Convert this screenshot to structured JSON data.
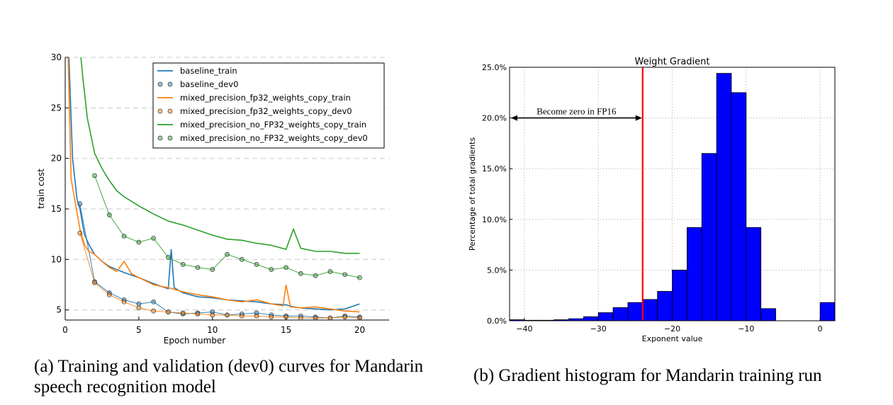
{
  "chart_data": [
    {
      "type": "line",
      "xlabel": "Epoch number",
      "ylabel": "train cost",
      "xlim": [
        0,
        22
      ],
      "ylim": [
        4,
        30
      ],
      "xticks": [
        0,
        5,
        10,
        15,
        20
      ],
      "yticks": [
        5,
        10,
        15,
        20,
        25,
        30
      ],
      "grid": "horizontal dashed",
      "legend_position": "top-right",
      "caption": "(a) Training and validation (dev0) curves for Mandarin speech recognition model",
      "series": [
        {
          "name": "baseline_train",
          "kind": "line",
          "color": "#1f77b4",
          "x": [
            0.2,
            0.5,
            0.8,
            1.0,
            1.3,
            1.6,
            2.0,
            2.5,
            3.0,
            3.5,
            4.0,
            5.0,
            6.0,
            7.0,
            7.2,
            7.4,
            8.0,
            9.0,
            10.0,
            11.0,
            12.0,
            13.0,
            14.0,
            15.0,
            15.5,
            16.0,
            17.0,
            18.0,
            19.0,
            20.0
          ],
          "y": [
            32,
            20,
            16,
            15,
            12.5,
            11.5,
            10.5,
            9.8,
            9.3,
            9.0,
            8.7,
            8.2,
            7.6,
            7.1,
            11.0,
            7.2,
            6.7,
            6.3,
            6.2,
            6.0,
            5.9,
            5.8,
            5.6,
            5.5,
            5.3,
            5.2,
            5.1,
            5.0,
            5.1,
            5.6
          ]
        },
        {
          "name": "baseline_dev0",
          "kind": "markers",
          "color": "#1f77b4",
          "x": [
            1,
            2,
            3,
            4,
            5,
            6,
            7,
            8,
            9,
            10,
            11,
            12,
            13,
            14,
            15,
            16,
            17,
            18,
            19,
            20
          ],
          "y": [
            15.5,
            7.8,
            6.7,
            6.0,
            5.6,
            5.8,
            4.8,
            4.6,
            4.7,
            4.8,
            4.5,
            4.6,
            4.7,
            4.5,
            4.4,
            4.4,
            4.3,
            4.2,
            4.4,
            4.3
          ]
        },
        {
          "name": "mixed_precision_fp32_weights_copy_train",
          "kind": "line",
          "color": "#ff7f0e",
          "x": [
            0.2,
            0.4,
            0.7,
            1.0,
            1.3,
            1.6,
            2.0,
            2.5,
            3.0,
            3.5,
            4.0,
            4.5,
            5.0,
            6.0,
            7.0,
            8.0,
            9.0,
            10.0,
            11.0,
            12.0,
            13.0,
            14.0,
            14.8,
            15.0,
            15.3,
            16.0,
            17.0,
            18.0,
            19.0,
            20.0
          ],
          "y": [
            30,
            18,
            15.5,
            13,
            11.5,
            10.8,
            10.5,
            9.8,
            9.2,
            8.8,
            9.8,
            8.6,
            8.2,
            7.5,
            7.2,
            6.8,
            6.5,
            6.3,
            6.0,
            5.8,
            6.0,
            5.6,
            5.4,
            7.5,
            5.3,
            5.2,
            5.3,
            5.1,
            4.9,
            4.8
          ]
        },
        {
          "name": "mixed_precision_fp32_weights_copy_dev0",
          "kind": "markers",
          "color": "#ff7f0e",
          "x": [
            1,
            2,
            3,
            4,
            5,
            6,
            7,
            8,
            9,
            10,
            11,
            12,
            13,
            14,
            15,
            16,
            17,
            18,
            19,
            20
          ],
          "y": [
            12.6,
            7.7,
            6.5,
            5.8,
            5.2,
            4.9,
            4.8,
            4.7,
            4.6,
            4.5,
            4.5,
            4.4,
            4.4,
            4.3,
            4.3,
            4.2,
            4.2,
            4.2,
            4.3,
            4.2
          ]
        },
        {
          "name": "mixed_precision_no_FP32_weights_copy_train",
          "kind": "line",
          "color": "#2ca02c",
          "x": [
            1.0,
            1.2,
            1.5,
            2.0,
            2.5,
            3.0,
            3.5,
            4.0,
            5.0,
            6.0,
            7.0,
            8.0,
            9.0,
            10.0,
            11.0,
            12.0,
            13.0,
            14.0,
            15.0,
            15.5,
            16.0,
            17.0,
            18.0,
            19.0,
            20.0
          ],
          "y": [
            31,
            28,
            24,
            20.5,
            19.0,
            17.8,
            16.8,
            16.2,
            15.3,
            14.5,
            13.8,
            13.4,
            12.9,
            12.4,
            12.0,
            11.9,
            11.6,
            11.4,
            11.0,
            13.0,
            11.1,
            10.8,
            10.8,
            10.6,
            10.6
          ]
        },
        {
          "name": "mixed_precision_no_FP32_weights_copy_dev0",
          "kind": "markers",
          "color": "#2ca02c",
          "x": [
            2,
            3,
            4,
            5,
            6,
            7,
            8,
            9,
            10,
            11,
            12,
            13,
            14,
            15,
            16,
            17,
            18,
            19,
            20
          ],
          "y": [
            18.3,
            14.4,
            12.3,
            11.7,
            12.1,
            10.2,
            9.5,
            9.2,
            9.0,
            10.5,
            10.0,
            9.5,
            9.0,
            9.2,
            8.6,
            8.4,
            8.8,
            8.5,
            8.2
          ]
        }
      ]
    },
    {
      "type": "bar",
      "title": "Weight Gradient",
      "xlabel": "Exponent value",
      "ylabel": "Percentage of total gradients",
      "xlim": [
        -42,
        2
      ],
      "ylim": [
        0,
        25
      ],
      "xticks": [
        -40,
        -30,
        -20,
        -10,
        0
      ],
      "yticks": [
        "0.0%",
        "5.0%",
        "10.0%",
        "15.0%",
        "20.0%",
        "25.0%"
      ],
      "grid": "dotted",
      "bar_color": "#0000ff",
      "bin_width": 2,
      "bins_left_edge": [
        -42,
        -40,
        -38,
        -36,
        -34,
        -32,
        -30,
        -28,
        -26,
        -24,
        -22,
        -20,
        -18,
        -16,
        -14,
        -12,
        -10,
        -8,
        -6,
        -4,
        -2,
        0
      ],
      "values": [
        0.1,
        0.05,
        0.05,
        0.1,
        0.2,
        0.4,
        0.8,
        1.3,
        1.8,
        2.1,
        2.9,
        5.0,
        9.2,
        16.5,
        24.4,
        22.5,
        9.2,
        1.2,
        0.0,
        0.0,
        0.0,
        1.8
      ],
      "threshold_line_x": -24,
      "threshold_color": "#ff0000",
      "annotation": "Become zero in FP16",
      "annotation_arrow": [
        -42,
        -24
      ],
      "annotation_y": 20.0,
      "caption": "(b) Gradient histogram for Mandarin training run"
    }
  ]
}
